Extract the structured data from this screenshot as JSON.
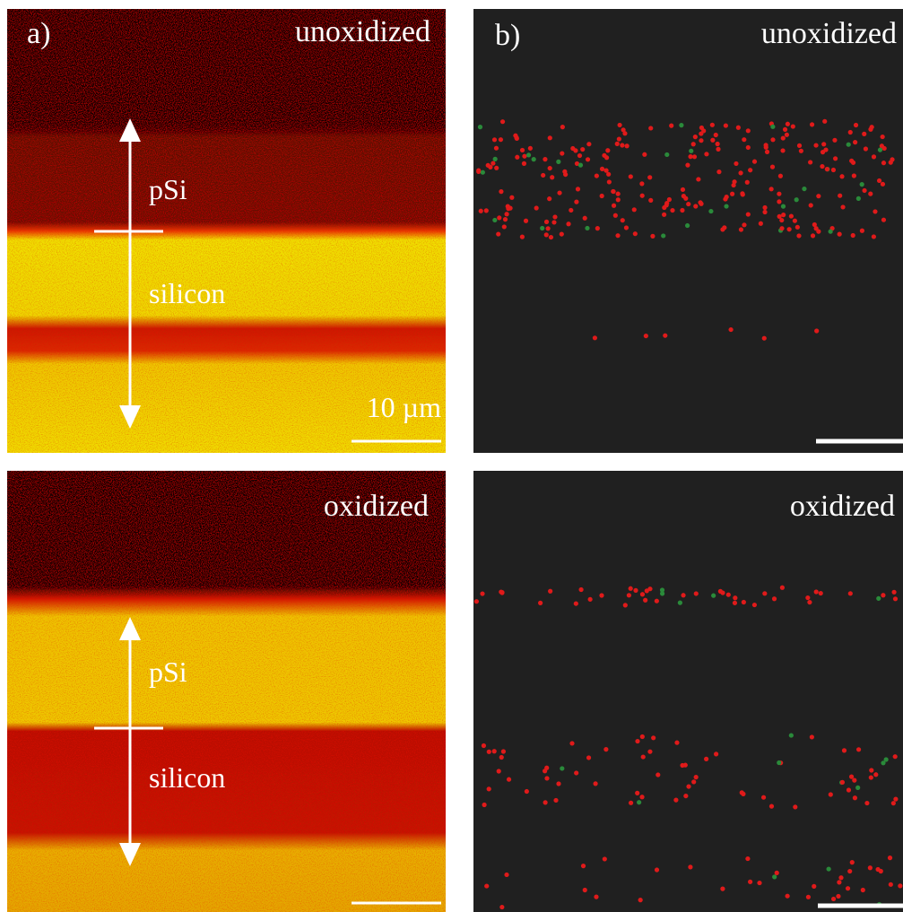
{
  "panels": [
    {
      "label": "a)",
      "images": [
        {
          "condition": "unoxidized",
          "annotations": [
            "pSi",
            "silicon"
          ],
          "scale_bar": "10 µm"
        },
        {
          "condition": "oxidized",
          "annotations": [
            "pSi",
            "silicon"
          ]
        }
      ]
    },
    {
      "label": "b)",
      "images": [
        {
          "condition": "unoxidized"
        },
        {
          "condition": "oxidized"
        }
      ]
    }
  ]
}
